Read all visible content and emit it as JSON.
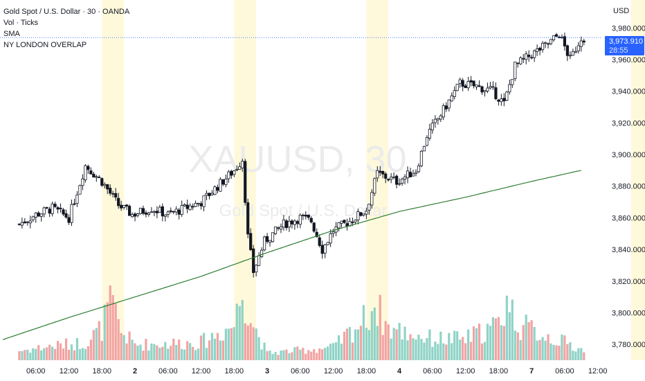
{
  "legend": {
    "title": "Gold Spot / U.S. Dollar · 30 · OANDA",
    "lines": [
      "Vol · Ticks",
      "SMA",
      "NY LONDON OVERLAP"
    ]
  },
  "watermark": {
    "symbol": "XAUUSD, 30",
    "description": "Gold Spot / U.S. Dollar"
  },
  "price_axis": {
    "currency": "USD",
    "ticks": [
      "3,980.000",
      "3,960.000",
      "3,940.000",
      "3,920.000",
      "3,900.000",
      "3,880.000",
      "3,860.000",
      "3,840.000",
      "3,820.000",
      "3,800.000",
      "3,780.000"
    ]
  },
  "time_axis": {
    "ticks": [
      "06:00",
      "12:00",
      "18:00",
      "2",
      "06:00",
      "12:00",
      "18:00",
      "3",
      "06:00",
      "12:00",
      "18:00",
      "4",
      "06:00",
      "12:00",
      "18:00",
      "7",
      "06:00",
      "12:00"
    ]
  },
  "current_price": {
    "value": "3,973.910",
    "countdown": "28:55"
  },
  "colors": {
    "up": "#26a69a",
    "down": "#131722",
    "vol_up": "#8fd3c6",
    "vol_down": "#f2a3a3",
    "sma": "#2e7d32",
    "session": "#fff9db",
    "price_line": "#2962ff"
  },
  "chart_data": {
    "type": "candlestick",
    "title": "Gold Spot / U.S. Dollar · 30 · OANDA",
    "ylabel": "USD",
    "ylim": [
      3770,
      3988
    ],
    "sessions": [
      {
        "label": "NY LONDON OVERLAP",
        "from": "1 18:00",
        "to": "1 22:00"
      },
      {
        "label": "NY LONDON OVERLAP",
        "from": "2 18:00",
        "to": "2 22:00"
      },
      {
        "label": "NY LONDON OVERLAP",
        "from": "3 18:00",
        "to": "3 22:00"
      },
      {
        "label": "NY LONDON OVERLAP",
        "from": "7 18:00",
        "to": "7 22:00"
      }
    ],
    "close_anchors": [
      {
        "t": "1 03:00",
        "v": 3856
      },
      {
        "t": "1 06:00",
        "v": 3862
      },
      {
        "t": "1 09:00",
        "v": 3866
      },
      {
        "t": "1 12:00",
        "v": 3860
      },
      {
        "t": "1 15:00",
        "v": 3893
      },
      {
        "t": "1 18:00",
        "v": 3883
      },
      {
        "t": "1 21:00",
        "v": 3868
      },
      {
        "t": "1 23:30",
        "v": 3862
      },
      {
        "t": "2 03:00",
        "v": 3866
      },
      {
        "t": "2 06:00",
        "v": 3862
      },
      {
        "t": "2 09:00",
        "v": 3866
      },
      {
        "t": "2 12:00",
        "v": 3870
      },
      {
        "t": "2 15:00",
        "v": 3880
      },
      {
        "t": "2 18:00",
        "v": 3890
      },
      {
        "t": "2 19:30",
        "v": 3897
      },
      {
        "t": "2 20:30",
        "v": 3848
      },
      {
        "t": "2 21:30",
        "v": 3826
      },
      {
        "t": "2 23:30",
        "v": 3845
      },
      {
        "t": "3 03:00",
        "v": 3856
      },
      {
        "t": "3 06:00",
        "v": 3860
      },
      {
        "t": "3 08:00",
        "v": 3858
      },
      {
        "t": "3 10:00",
        "v": 3840
      },
      {
        "t": "3 12:00",
        "v": 3852
      },
      {
        "t": "3 15:00",
        "v": 3858
      },
      {
        "t": "3 18:00",
        "v": 3865
      },
      {
        "t": "3 20:00",
        "v": 3888
      },
      {
        "t": "3 23:30",
        "v": 3883
      },
      {
        "t": "4 03:00",
        "v": 3890
      },
      {
        "t": "4 05:00",
        "v": 3912
      },
      {
        "t": "4 08:00",
        "v": 3928
      },
      {
        "t": "4 11:00",
        "v": 3945
      },
      {
        "t": "4 14:00",
        "v": 3943
      },
      {
        "t": "4 17:00",
        "v": 3940
      },
      {
        "t": "4 19:00",
        "v": 3932
      },
      {
        "t": "4 21:00",
        "v": 3956
      },
      {
        "t": "4 23:30",
        "v": 3962
      },
      {
        "t": "7 03:00",
        "v": 3970
      },
      {
        "t": "7 05:00",
        "v": 3976
      },
      {
        "t": "7 07:00",
        "v": 3960
      },
      {
        "t": "7 09:00",
        "v": 3974
      }
    ],
    "sma": [
      {
        "t": "1 00:00",
        "v": 3783
      },
      {
        "t": "1 12:00",
        "v": 3797
      },
      {
        "t": "2 00:00",
        "v": 3810
      },
      {
        "t": "2 12:00",
        "v": 3823
      },
      {
        "t": "3 00:00",
        "v": 3838
      },
      {
        "t": "3 12:00",
        "v": 3852
      },
      {
        "t": "4 00:00",
        "v": 3864
      },
      {
        "t": "4 12:00",
        "v": 3873
      },
      {
        "t": "7 00:00",
        "v": 3883
      },
      {
        "t": "7 09:00",
        "v": 3890
      }
    ],
    "volume_anchors": [
      {
        "t": "1 00:00",
        "v": 0.1
      },
      {
        "t": "1 09:00",
        "v": 0.2
      },
      {
        "t": "1 15:00",
        "v": 0.25
      },
      {
        "t": "1 18:00",
        "v": 0.45
      },
      {
        "t": "1 19:30",
        "v": 0.85
      },
      {
        "t": "1 21:30",
        "v": 0.4
      },
      {
        "t": "2 00:00",
        "v": 0.22
      },
      {
        "t": "2 12:00",
        "v": 0.25
      },
      {
        "t": "2 18:00",
        "v": 0.5
      },
      {
        "t": "2 19:30",
        "v": 1.0
      },
      {
        "t": "2 21:30",
        "v": 0.5
      },
      {
        "t": "3 00:00",
        "v": 0.1
      },
      {
        "t": "3 12:00",
        "v": 0.18
      },
      {
        "t": "3 18:00",
        "v": 0.6
      },
      {
        "t": "3 19:30",
        "v": 0.8
      },
      {
        "t": "3 22:00",
        "v": 0.45
      },
      {
        "t": "4 06:00",
        "v": 0.3
      },
      {
        "t": "4 12:00",
        "v": 0.3
      },
      {
        "t": "4 18:00",
        "v": 0.5
      },
      {
        "t": "4 19:30",
        "v": 0.85
      },
      {
        "t": "4 21:30",
        "v": 0.5
      },
      {
        "t": "7 06:00",
        "v": 0.25
      },
      {
        "t": "7 09:00",
        "v": 0.15
      }
    ]
  }
}
